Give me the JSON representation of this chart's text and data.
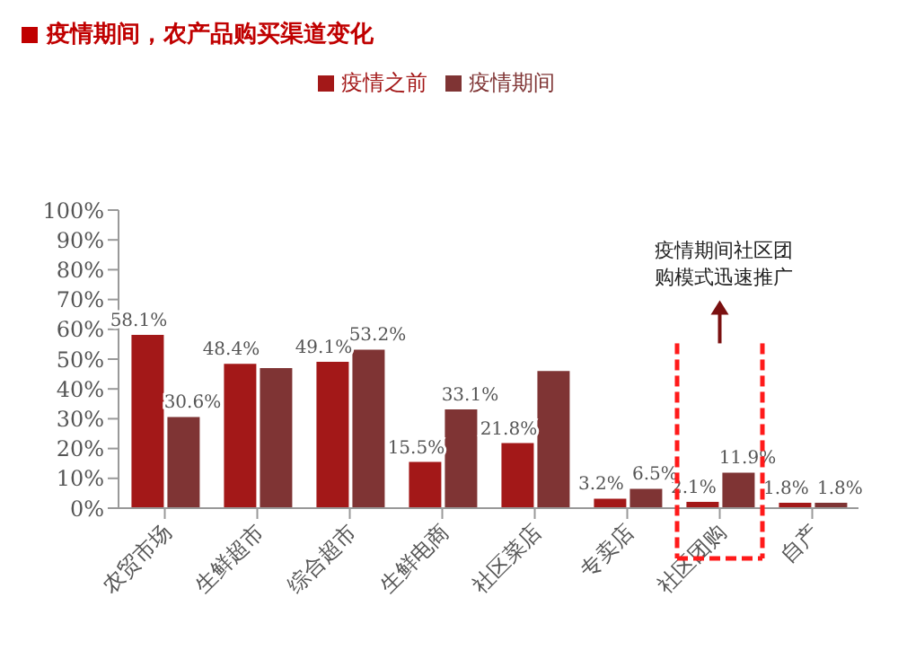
{
  "chart_data": {
    "type": "bar",
    "title": "疫情期间，农产品购买渠道变化",
    "categories": [
      "农贸市场",
      "生鲜超市",
      "综合超市",
      "生鲜电商",
      "社区菜店",
      "专卖店",
      "社区团购",
      "自产"
    ],
    "series": [
      {
        "name": "疫情之前",
        "color": "#a31818",
        "values": [
          58.1,
          48.4,
          49.1,
          15.5,
          21.8,
          3.2,
          2.1,
          1.8
        ],
        "value_labels": [
          "58.1%",
          "48.4%",
          "49.1%",
          "15.5%",
          "21.8%",
          "3.2%",
          "2.1%",
          "1.8%"
        ]
      },
      {
        "name": "疫情期间",
        "color": "#7f3434",
        "values": [
          30.6,
          47,
          53.2,
          33.1,
          46,
          6.5,
          11.9,
          1.8
        ],
        "value_labels": [
          "30.6%",
          null,
          "53.2%",
          "33.1%",
          null,
          "6.5%",
          "11.9%",
          "1.8%"
        ]
      }
    ],
    "ylim": [
      0,
      100
    ],
    "yticks": [
      {
        "value": 0,
        "label": "0%"
      },
      {
        "value": 10,
        "label": "10%"
      },
      {
        "value": 20,
        "label": "20%"
      },
      {
        "value": 30,
        "label": "30%"
      },
      {
        "value": 40,
        "label": "40%"
      },
      {
        "value": 50,
        "label": "50%"
      },
      {
        "value": 60,
        "label": "60%"
      },
      {
        "value": 70,
        "label": "70%"
      },
      {
        "value": 80,
        "label": "80%"
      },
      {
        "value": 90,
        "label": "90%"
      },
      {
        "value": 100,
        "label": "100%"
      }
    ],
    "legend": "top",
    "grid": false,
    "annotations": [
      "疫情期间社区团购模式迅速推广"
    ]
  }
}
